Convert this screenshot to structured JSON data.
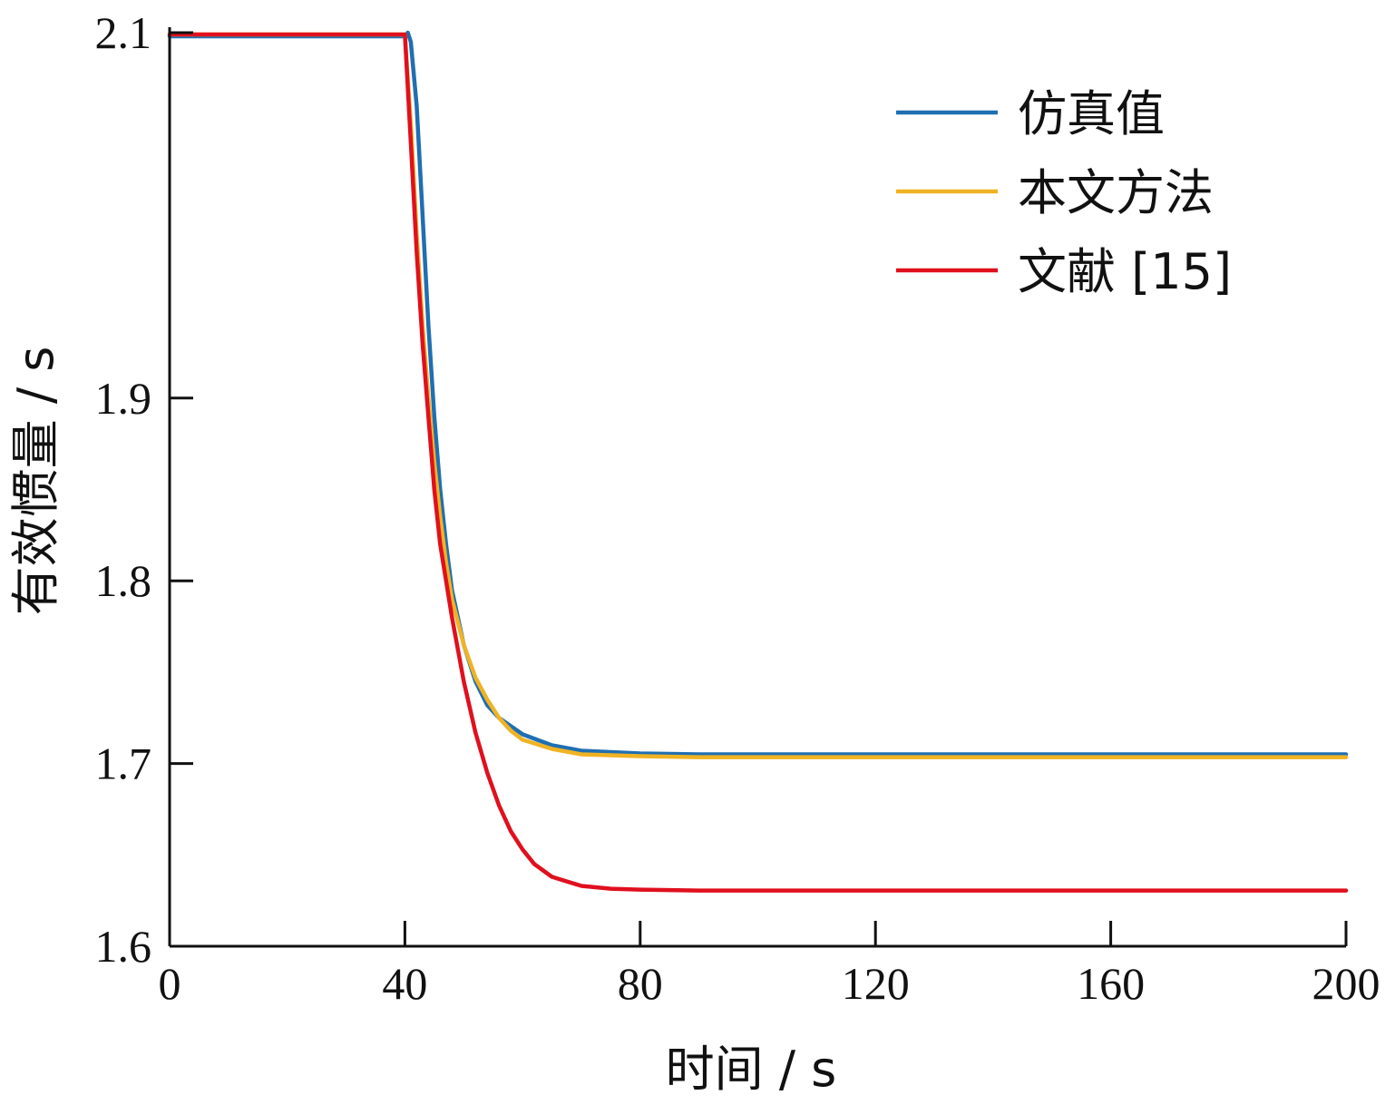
{
  "chart_data": {
    "type": "line",
    "title": "",
    "xlabel": "时间 / s",
    "ylabel": "有效惯量 / s",
    "xlim": [
      0,
      200
    ],
    "ylim": [
      1.6,
      2.1
    ],
    "xticks": [
      0,
      40,
      80,
      120,
      160,
      200
    ],
    "yticks": [
      1.6,
      1.7,
      1.8,
      1.9,
      2.1
    ],
    "xtick_labels": [
      "0",
      "40",
      "80",
      "120",
      "160",
      "200"
    ],
    "ytick_labels": [
      "1.6",
      "1.7",
      "1.8",
      "1.9",
      "2.1"
    ],
    "grid": false,
    "legend_position": "top-right",
    "series": [
      {
        "name": "仿真值",
        "color": "#1f6fb2",
        "x": [
          0,
          40,
          40.5,
          41,
          42,
          43,
          44,
          45,
          46,
          47,
          48,
          50,
          52,
          54,
          56,
          60,
          65,
          70,
          80,
          90,
          100,
          120,
          160,
          200
        ],
        "y": [
          2.098,
          2.098,
          2.1,
          2.095,
          2.06,
          2.0,
          1.94,
          1.89,
          1.85,
          1.82,
          1.795,
          1.765,
          1.745,
          1.732,
          1.725,
          1.716,
          1.71,
          1.707,
          1.7055,
          1.705,
          1.705,
          1.705,
          1.705,
          1.705
        ]
      },
      {
        "name": "本文方法",
        "color": "#f0b323",
        "x": [
          0,
          40,
          41,
          42,
          43,
          44,
          45,
          46,
          47,
          48,
          50,
          52,
          54,
          56,
          58,
          60,
          65,
          70,
          80,
          90,
          100,
          120,
          160,
          200
        ],
        "y": [
          2.099,
          2.099,
          2.05,
          1.99,
          1.94,
          1.9,
          1.865,
          1.835,
          1.81,
          1.79,
          1.765,
          1.747,
          1.735,
          1.725,
          1.718,
          1.713,
          1.708,
          1.705,
          1.704,
          1.7035,
          1.7035,
          1.7035,
          1.7035,
          1.7035
        ]
      },
      {
        "name": "文献 [15]",
        "color": "#e0101e",
        "x": [
          0,
          40,
          41,
          42,
          43,
          44,
          45,
          46,
          48,
          50,
          52,
          54,
          56,
          58,
          60,
          62,
          65,
          70,
          75,
          80,
          90,
          100,
          120,
          160,
          200
        ],
        "y": [
          2.099,
          2.099,
          2.04,
          1.98,
          1.93,
          1.89,
          1.85,
          1.82,
          1.78,
          1.745,
          1.717,
          1.695,
          1.677,
          1.663,
          1.653,
          1.645,
          1.638,
          1.633,
          1.6315,
          1.631,
          1.6305,
          1.6305,
          1.6305,
          1.6305,
          1.6305
        ]
      }
    ]
  }
}
